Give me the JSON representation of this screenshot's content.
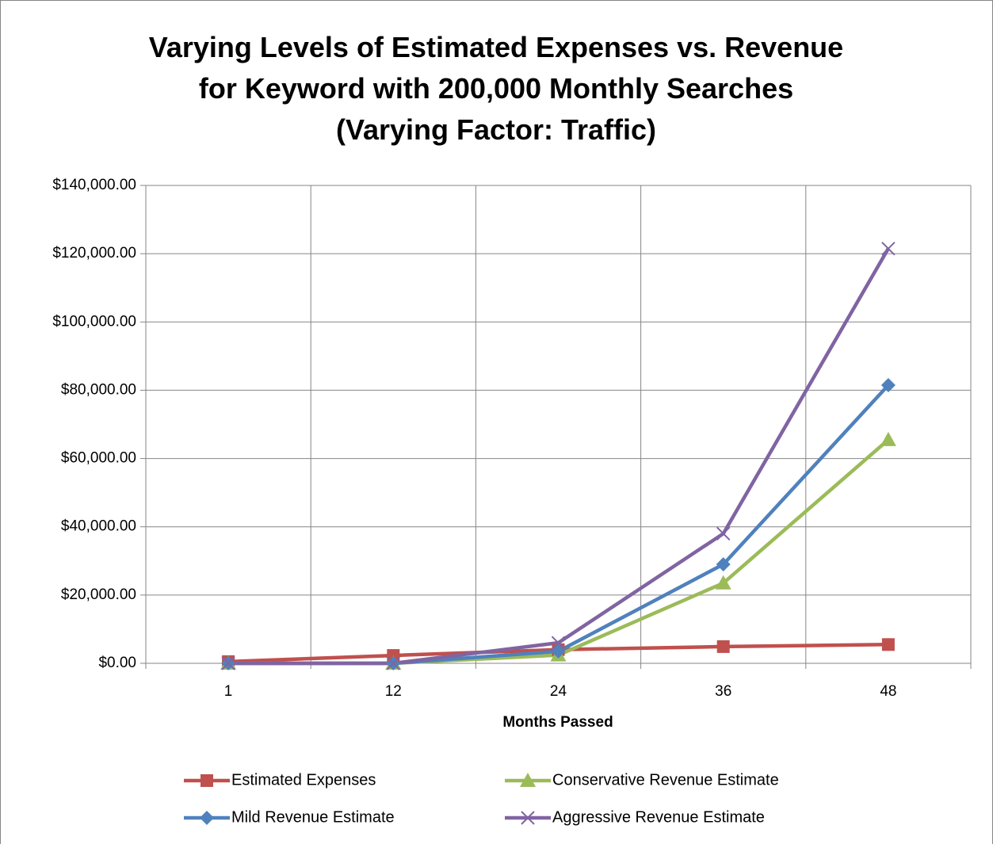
{
  "chart_data": {
    "type": "line",
    "title": "Varying Levels of Estimated Expenses vs. Revenue for Keyword with 200,000 Monthly Searches (Varying Factor: Traffic)",
    "x_label": "Months Passed",
    "categories": [
      "1",
      "12",
      "24",
      "36",
      "48"
    ],
    "series": [
      {
        "name": "Estimated Expenses",
        "color": "#c0504d",
        "marker": "square",
        "values": [
          500,
          2300,
          4000,
          4900,
          5500
        ]
      },
      {
        "name": "Conservative Revenue Estimate",
        "color": "#9bbb59",
        "marker": "triangle",
        "values": [
          0,
          0,
          2400,
          23500,
          65500
        ]
      },
      {
        "name": "Mild Revenue Estimate",
        "color": "#4f81bd",
        "marker": "diamond",
        "values": [
          0,
          0,
          3500,
          29000,
          81500
        ]
      },
      {
        "name": "Aggressive Revenue Estimate",
        "color": "#8064a2",
        "marker": "x",
        "values": [
          0,
          0,
          6000,
          38000,
          121500
        ]
      }
    ],
    "ylim": [
      0,
      140000
    ],
    "yticks": [
      {
        "value": 0,
        "label": "$0.00"
      },
      {
        "value": 20000,
        "label": "$20,000.00"
      },
      {
        "value": 40000,
        "label": "$40,000.00"
      },
      {
        "value": 60000,
        "label": "$60,000.00"
      },
      {
        "value": 80000,
        "label": "$80,000.00"
      },
      {
        "value": 100000,
        "label": "$100,000.00"
      },
      {
        "value": 120000,
        "label": "$120,000.00"
      },
      {
        "value": 140000,
        "label": "$140,000.00"
      }
    ],
    "grid": true,
    "legend": "bottom"
  }
}
